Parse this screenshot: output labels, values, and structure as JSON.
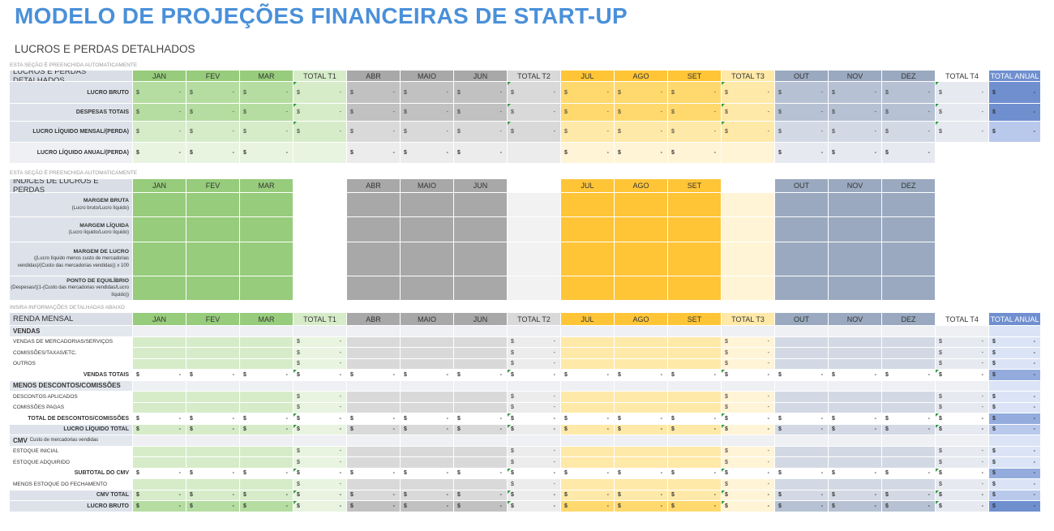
{
  "title": "MODELO DE PROJEÇÕES FINANCEIRAS DE START-UP",
  "subtitle": "LUCROS E PERDAS DETALHADOS",
  "notes": [
    "ESTA SEÇÃO É PREENCHIDA AUTOMATICAMENTE",
    "ESTA SEÇÃO É PREENCHIDA AUTOMATICAMENTE",
    "INSIRA INFORMAÇÕES DETALHADAS ABAIXO"
  ],
  "currency_symbol": "$",
  "dash": "-",
  "months": [
    "JAN",
    "FEV",
    "MAR",
    "ABR",
    "MAIO",
    "JUN",
    "JUL",
    "AGO",
    "SET",
    "OUT",
    "NOV",
    "DEZ"
  ],
  "totals": [
    "TOTAL T1",
    "TOTAL T2",
    "TOTAL T3",
    "TOTAL T4"
  ],
  "total_annual": "TOTAL ANUAL",
  "colors": {
    "q1": [
      "#96cc7b",
      "#b5dda1",
      "#d6ecc9",
      "#e8f4e0"
    ],
    "q2": [
      "#a8a8a8",
      "#c1c1c1",
      "#d9d9d9",
      "#ececec"
    ],
    "q3": [
      "#ffc537",
      "#ffd96e",
      "#ffe9a8",
      "#fff4d6"
    ],
    "q4": [
      "#9aa9bf",
      "#b6c2d3",
      "#d2d9e4",
      "#e6eaf0"
    ],
    "annual": [
      "#6f8fcf",
      "#93acdd",
      "#b8c9ec",
      "#dbe4f6"
    ],
    "title": "#4a90d9"
  },
  "table1": {
    "header": "LUCROS E PERDAS DETALHADOS",
    "rows": [
      "LUCRO BRUTO",
      "DESPESAS TOTAIS",
      "LUCRO LÍQUIDO MENSAL/(PERDA)",
      "LUCRO LÍQUIDO ANUAL/(PERDA)"
    ]
  },
  "table2": {
    "header": "ÍNDICES DE LUCROS E PERDAS",
    "rows": [
      {
        "name": "MARGEM BRUTA",
        "formula": "(Lucro bruto/Lucro líquido)"
      },
      {
        "name": "MARGEM LÍQUIDA",
        "formula": "(Lucro líquido/Lucro líquido)"
      },
      {
        "name": "MARGEM DE LUCRO",
        "formula": "((Lucro líquido menos custo de mercadorias vendidas)/(Custo das mercadorias vendidas)) x 100"
      },
      {
        "name": "PONTO DE EQUILÍBRIO",
        "formula": "(Despesas/((1-(Custo das mercadorias vendidas/Lucro líquido))"
      }
    ]
  },
  "table3": {
    "header": "RENDA MENSAL",
    "rows": [
      {
        "t": "section",
        "label": "VENDAS"
      },
      {
        "t": "input",
        "label": "VENDAS DE MERCADORIAS/SERVIÇOS"
      },
      {
        "t": "input",
        "label": "COMISSÕES/TAXAS/ETC."
      },
      {
        "t": "input",
        "label": "OUTROS"
      },
      {
        "t": "total",
        "label": "VENDAS TOTAIS"
      },
      {
        "t": "section",
        "label": "MENOS DESCONTOS/COMISSÕES"
      },
      {
        "t": "input",
        "label": "DESCONTOS APLICADOS"
      },
      {
        "t": "input",
        "label": "COMISSÕES PAGAS"
      },
      {
        "t": "total",
        "label": "TOTAL DE DESCONTOS/COMISSÕES"
      },
      {
        "t": "emph",
        "label": "LUCRO LÍQUIDO TOTAL"
      },
      {
        "t": "section",
        "label": "CMV",
        "sub": "Custo de mercadorias vendidas"
      },
      {
        "t": "input",
        "label": "ESTOQUE INICIAL"
      },
      {
        "t": "input",
        "label": "ESTOQUE ADQUIRIDO"
      },
      {
        "t": "total",
        "label": "SUBTOTAL DO CMV"
      },
      {
        "t": "input",
        "label": "MENOS ESTOQUE DO FECHAMENTO"
      },
      {
        "t": "emph",
        "label": "CMV TOTAL"
      },
      {
        "t": "strong",
        "label": "LUCRO BRUTO"
      }
    ]
  }
}
